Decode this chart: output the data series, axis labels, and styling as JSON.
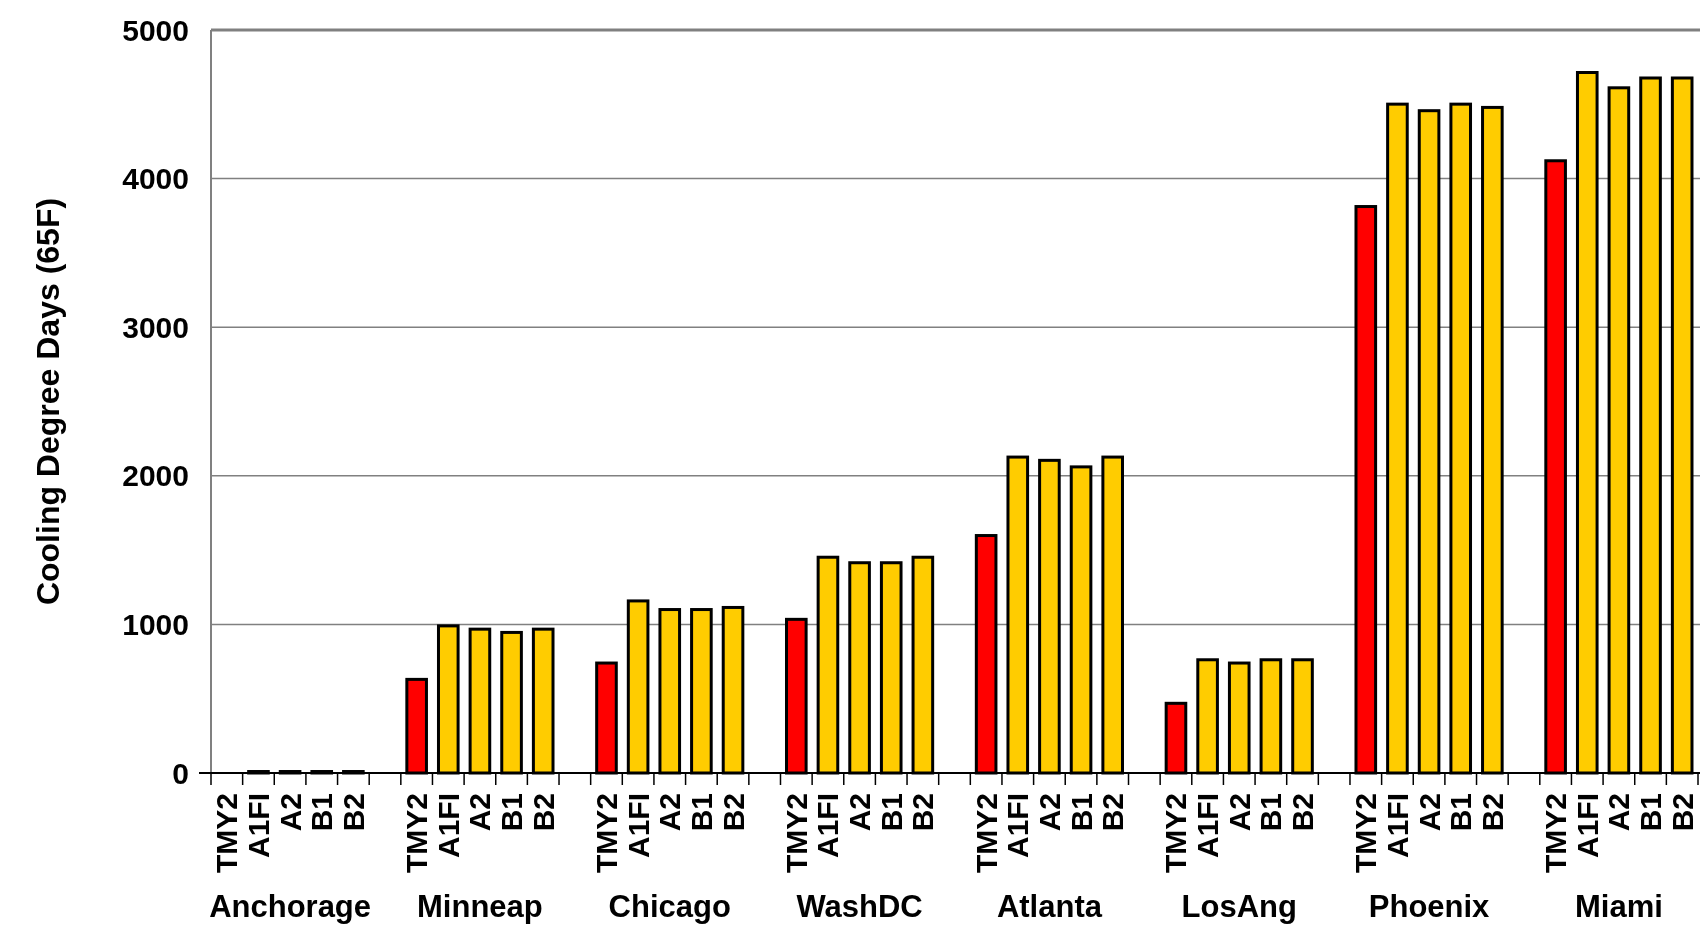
{
  "chart_data": {
    "type": "bar",
    "ylabel": "Cooling Degree Days (65F)",
    "categories": [
      "TMY2",
      "A1FI",
      "A2",
      "B1",
      "B2",
      null,
      "TMY2",
      "A1FI",
      "A2",
      "B1",
      "B2",
      null,
      "TMY2",
      "A1FI",
      "A2",
      "B1",
      "B2",
      null,
      "TMY2",
      "A1FI",
      "A2",
      "B1",
      "B2",
      null,
      "TMY2",
      "A1FI",
      "A2",
      "B1",
      "B2",
      null,
      "TMY2",
      "A1FI",
      "A2",
      "B1",
      "B2",
      null,
      "TMY2",
      "A1FI",
      "A2",
      "B1",
      "B2",
      null,
      "TMY2",
      "A1FI",
      "A2",
      "B1",
      "B2"
    ],
    "values": [
      0,
      10,
      10,
      10,
      10,
      null,
      630,
      990,
      968,
      946,
      968,
      null,
      740,
      1158,
      1100,
      1100,
      1114,
      null,
      1034,
      1452,
      1415,
      1415,
      1452,
      null,
      1598,
      2126,
      2104,
      2060,
      2126,
      null,
      469,
      762,
      740,
      762,
      762,
      null,
      3812,
      4501,
      4457,
      4501,
      4479,
      null,
      4120,
      4714,
      4611,
      4677,
      4677
    ],
    "colors": [
      "#ff0000",
      "#ffcc00",
      "#ffcc00",
      "#ffcc00",
      "#ffcc00",
      null,
      "#ff0000",
      "#ffcc00",
      "#ffcc00",
      "#ffcc00",
      "#ffcc00",
      null,
      "#ff0000",
      "#ffcc00",
      "#ffcc00",
      "#ffcc00",
      "#ffcc00",
      null,
      "#ff0000",
      "#ffcc00",
      "#ffcc00",
      "#ffcc00",
      "#ffcc00",
      null,
      "#ff0000",
      "#ffcc00",
      "#ffcc00",
      "#ffcc00",
      "#ffcc00",
      null,
      "#ff0000",
      "#ffcc00",
      "#ffcc00",
      "#ffcc00",
      "#ffcc00",
      null,
      "#ff0000",
      "#ffcc00",
      "#ffcc00",
      "#ffcc00",
      "#ffcc00",
      null,
      "#ff0000",
      "#ffcc00",
      "#ffcc00",
      "#ffcc00",
      "#ffcc00"
    ],
    "ylim": [
      0,
      5000
    ],
    "yticks": [
      0,
      1000,
      2000,
      3000,
      4000,
      5000
    ],
    "grid": "y",
    "annotations": [
      "Anchorage",
      "Minneap",
      "Chicago",
      "WashDC",
      "Atlanta",
      "LosAng",
      "Phoenix",
      "Miami"
    ]
  }
}
